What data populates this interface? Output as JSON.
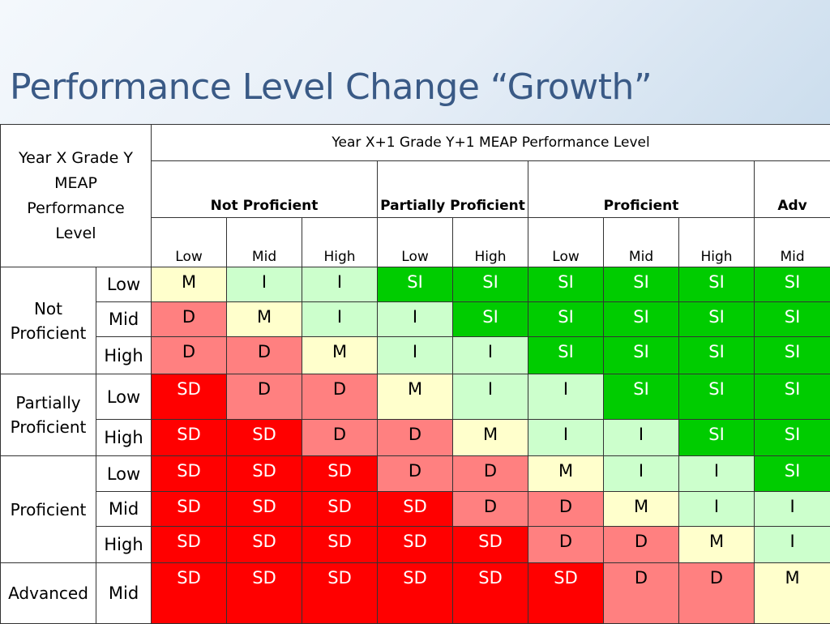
{
  "title": "Performance Level Change “Growth”",
  "header": {
    "corner_label": "Year X Grade Y MEAP Performance Level",
    "top_label": "Year X+1 Grade Y+1 MEAP Performance Level",
    "groups": [
      {
        "label": "Not Proficient",
        "span": 3
      },
      {
        "label": "Partially Proficient",
        "span": 2
      },
      {
        "label": "Proficient",
        "span": 3
      },
      {
        "label": "Adv",
        "span": 1
      }
    ],
    "sublevels": [
      "Low",
      "Mid",
      "High",
      "Low",
      "High",
      "Low",
      "Mid",
      "High",
      "Mid"
    ]
  },
  "row_groups": [
    {
      "label": "Not Proficient",
      "rows": [
        {
          "level": "Low",
          "cells": [
            "M",
            "I",
            "I",
            "SI",
            "SI",
            "SI",
            "SI",
            "SI",
            "SI"
          ]
        },
        {
          "level": "Mid",
          "cells": [
            "D",
            "M",
            "I",
            "I",
            "SI",
            "SI",
            "SI",
            "SI",
            "SI"
          ]
        },
        {
          "level": "High",
          "cells": [
            "D",
            "D",
            "M",
            "I",
            "I",
            "SI",
            "SI",
            "SI",
            "SI"
          ]
        }
      ]
    },
    {
      "label": "Partially Proficient",
      "rows": [
        {
          "level": "Low",
          "cells": [
            "SD",
            "D",
            "D",
            "M",
            "I",
            "I",
            "SI",
            "SI",
            "SI"
          ]
        },
        {
          "level": "High",
          "cells": [
            "SD",
            "SD",
            "D",
            "D",
            "M",
            "I",
            "I",
            "SI",
            "SI"
          ]
        }
      ]
    },
    {
      "label": "Proficient",
      "rows": [
        {
          "level": "Low",
          "cells": [
            "SD",
            "SD",
            "SD",
            "D",
            "D",
            "M",
            "I",
            "I",
            "SI"
          ]
        },
        {
          "level": "Mid",
          "cells": [
            "SD",
            "SD",
            "SD",
            "SD",
            "D",
            "D",
            "M",
            "I",
            "I"
          ]
        },
        {
          "level": "High",
          "cells": [
            "SD",
            "SD",
            "SD",
            "SD",
            "SD",
            "D",
            "D",
            "M",
            "I"
          ]
        }
      ]
    },
    {
      "label": "Advanced",
      "rows": [
        {
          "level": "Mid",
          "cells": [
            "SD",
            "SD",
            "SD",
            "SD",
            "SD",
            "SD",
            "D",
            "D",
            "M"
          ]
        }
      ]
    }
  ],
  "colors": {
    "M": "#ffffcc",
    "I": "#ccffcc",
    "SI": "#00cc00",
    "D": "#ff8080",
    "SD": "#ff0000",
    "title": "#3a5a86"
  }
}
